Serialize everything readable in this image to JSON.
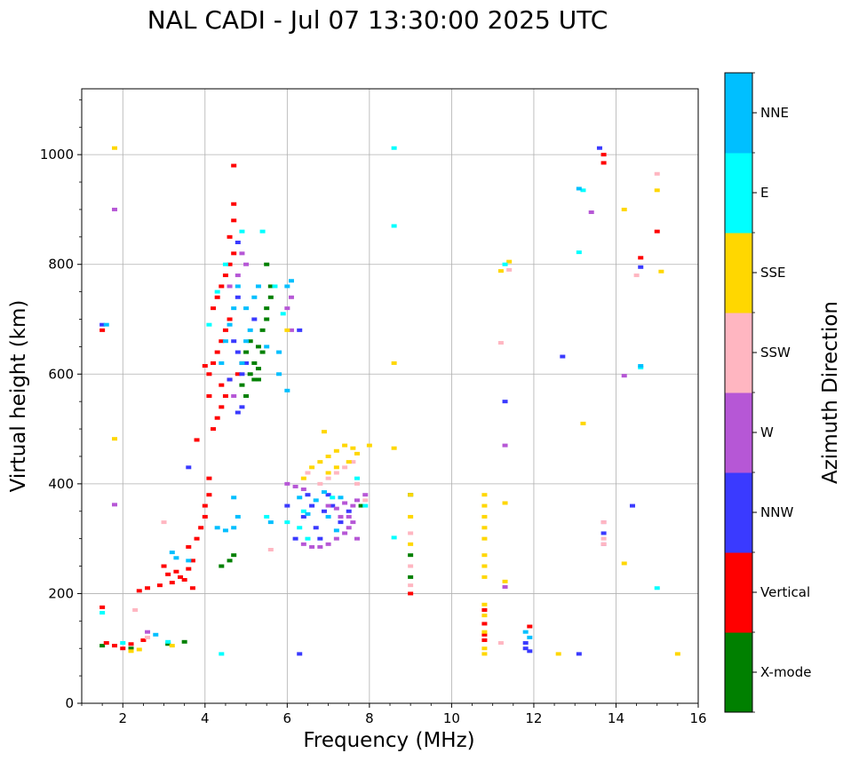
{
  "chart_data": {
    "type": "scatter",
    "title": "NAL CADI - Jul 07 13:30:00 2025 UTC",
    "xlabel": "Frequency (MHz)",
    "ylabel": "Virtual height (km)",
    "xlim": [
      1,
      16
    ],
    "ylim": [
      0,
      1120
    ],
    "xticks": [
      2,
      4,
      6,
      8,
      10,
      12,
      14,
      16
    ],
    "yticks": [
      0,
      200,
      400,
      600,
      800,
      1000
    ],
    "grid": true,
    "colorbar": {
      "label": "Azimuth Direction",
      "categories": [
        {
          "name": "X-mode",
          "color": "#008000"
        },
        {
          "name": "Vertical",
          "color": "#ff0000"
        },
        {
          "name": "NNW",
          "color": "#3a3aff"
        },
        {
          "name": "W",
          "color": "#b657d6"
        },
        {
          "name": "SSW",
          "color": "#ffb6c1"
        },
        {
          "name": "SSE",
          "color": "#ffd700"
        },
        {
          "name": "E",
          "color": "#00ffff"
        },
        {
          "name": "NNE",
          "color": "#00bfff"
        }
      ]
    },
    "series": [
      {
        "name": "X-mode",
        "points": [
          [
            1.5,
            105
          ],
          [
            2.2,
            100
          ],
          [
            3.1,
            108
          ],
          [
            3.5,
            112
          ],
          [
            4.4,
            250
          ],
          [
            4.7,
            270
          ],
          [
            4.6,
            260
          ],
          [
            5.0,
            560
          ],
          [
            5.1,
            600
          ],
          [
            5.2,
            620
          ],
          [
            5.3,
            650
          ],
          [
            5.4,
            680
          ],
          [
            5.5,
            720
          ],
          [
            5.6,
            760
          ],
          [
            5.2,
            590
          ],
          [
            5.3,
            610
          ],
          [
            5.4,
            640
          ],
          [
            5.5,
            700
          ],
          [
            5.5,
            800
          ],
          [
            4.9,
            580
          ],
          [
            5.0,
            640
          ],
          [
            5.1,
            660
          ],
          [
            5.6,
            740
          ],
          [
            7.8,
            360
          ],
          [
            9.0,
            380
          ],
          [
            9.0,
            270
          ],
          [
            9.0,
            230
          ],
          [
            5.3,
            590
          ]
        ]
      },
      {
        "name": "Vertical",
        "points": [
          [
            1.5,
            680
          ],
          [
            1.5,
            175
          ],
          [
            1.6,
            110
          ],
          [
            1.8,
            105
          ],
          [
            2.0,
            100
          ],
          [
            2.2,
            108
          ],
          [
            2.5,
            115
          ],
          [
            2.4,
            205
          ],
          [
            2.6,
            210
          ],
          [
            2.9,
            215
          ],
          [
            3.0,
            250
          ],
          [
            3.1,
            235
          ],
          [
            3.2,
            220
          ],
          [
            3.3,
            240
          ],
          [
            3.4,
            230
          ],
          [
            3.5,
            225
          ],
          [
            3.6,
            245
          ],
          [
            3.7,
            210
          ],
          [
            3.7,
            260
          ],
          [
            3.6,
            285
          ],
          [
            3.8,
            300
          ],
          [
            3.9,
            320
          ],
          [
            4.0,
            340
          ],
          [
            4.0,
            360
          ],
          [
            4.1,
            380
          ],
          [
            4.1,
            410
          ],
          [
            3.8,
            480
          ],
          [
            4.2,
            500
          ],
          [
            4.3,
            520
          ],
          [
            4.4,
            540
          ],
          [
            4.5,
            560
          ],
          [
            4.1,
            600
          ],
          [
            4.2,
            620
          ],
          [
            4.3,
            640
          ],
          [
            4.4,
            660
          ],
          [
            4.5,
            680
          ],
          [
            4.6,
            700
          ],
          [
            4.2,
            720
          ],
          [
            4.3,
            740
          ],
          [
            4.4,
            760
          ],
          [
            4.5,
            780
          ],
          [
            4.6,
            800
          ],
          [
            4.7,
            820
          ],
          [
            4.6,
            850
          ],
          [
            4.7,
            880
          ],
          [
            4.7,
            910
          ],
          [
            4.7,
            980
          ],
          [
            4.8,
            600
          ],
          [
            4.9,
            620
          ],
          [
            4.4,
            580
          ],
          [
            4.6,
            590
          ],
          [
            9.0,
            200
          ],
          [
            10.8,
            170
          ],
          [
            10.8,
            145
          ],
          [
            10.8,
            125
          ],
          [
            10.8,
            115
          ],
          [
            11.9,
            140
          ],
          [
            13.7,
            1000
          ],
          [
            13.7,
            985
          ],
          [
            14.6,
            812
          ],
          [
            15.0,
            860
          ],
          [
            4.1,
            560
          ],
          [
            4.0,
            615
          ]
        ]
      },
      {
        "name": "NNW",
        "points": [
          [
            1.5,
            690
          ],
          [
            3.6,
            430
          ],
          [
            4.8,
            530
          ],
          [
            4.9,
            540
          ],
          [
            4.6,
            590
          ],
          [
            4.9,
            600
          ],
          [
            5.0,
            620
          ],
          [
            4.8,
            640
          ],
          [
            4.7,
            660
          ],
          [
            5.2,
            700
          ],
          [
            4.8,
            740
          ],
          [
            4.8,
            840
          ],
          [
            6.3,
            90
          ],
          [
            6.3,
            680
          ],
          [
            6.4,
            340
          ],
          [
            6.6,
            360
          ],
          [
            6.7,
            320
          ],
          [
            6.8,
            300
          ],
          [
            6.9,
            350
          ],
          [
            7.0,
            380
          ],
          [
            7.1,
            360
          ],
          [
            7.3,
            330
          ],
          [
            7.5,
            350
          ],
          [
            6.0,
            360
          ],
          [
            6.2,
            300
          ],
          [
            11.3,
            550
          ],
          [
            11.8,
            110
          ],
          [
            11.8,
            100
          ],
          [
            11.9,
            95
          ],
          [
            12.7,
            632
          ],
          [
            13.1,
            90
          ],
          [
            13.6,
            1012
          ],
          [
            13.7,
            310
          ],
          [
            14.4,
            360
          ],
          [
            14.6,
            795
          ],
          [
            6.5,
            380
          ]
        ]
      },
      {
        "name": "W",
        "points": [
          [
            1.8,
            362
          ],
          [
            1.8,
            900
          ],
          [
            2.6,
            130
          ],
          [
            4.7,
            560
          ],
          [
            4.6,
            760
          ],
          [
            4.8,
            780
          ],
          [
            4.9,
            820
          ],
          [
            5.0,
            800
          ],
          [
            6.0,
            720
          ],
          [
            6.1,
            680
          ],
          [
            6.1,
            740
          ],
          [
            6.0,
            400
          ],
          [
            6.2,
            395
          ],
          [
            6.4,
            390
          ],
          [
            6.4,
            290
          ],
          [
            6.6,
            285
          ],
          [
            6.8,
            285
          ],
          [
            7.0,
            290
          ],
          [
            7.2,
            300
          ],
          [
            7.4,
            310
          ],
          [
            7.5,
            320
          ],
          [
            7.5,
            340
          ],
          [
            7.6,
            360
          ],
          [
            7.7,
            370
          ],
          [
            7.0,
            360
          ],
          [
            7.2,
            355
          ],
          [
            7.4,
            365
          ],
          [
            7.3,
            340
          ],
          [
            7.6,
            330
          ],
          [
            7.7,
            300
          ],
          [
            11.3,
            470
          ],
          [
            11.3,
            212
          ],
          [
            13.4,
            895
          ],
          [
            13.7,
            330
          ],
          [
            13.7,
            290
          ],
          [
            14.2,
            597
          ],
          [
            7.9,
            380
          ]
        ]
      },
      {
        "name": "SSW",
        "points": [
          [
            2.3,
            170
          ],
          [
            2.6,
            120
          ],
          [
            3.0,
            330
          ],
          [
            5.6,
            280
          ],
          [
            6.5,
            420
          ],
          [
            6.8,
            400
          ],
          [
            7.0,
            410
          ],
          [
            7.2,
            420
          ],
          [
            7.4,
            430
          ],
          [
            7.6,
            440
          ],
          [
            7.7,
            400
          ],
          [
            7.9,
            370
          ],
          [
            9.0,
            310
          ],
          [
            9.0,
            250
          ],
          [
            9.0,
            215
          ],
          [
            11.2,
            657
          ],
          [
            11.2,
            110
          ],
          [
            11.4,
            790
          ],
          [
            13.7,
            330
          ],
          [
            13.7,
            300
          ],
          [
            13.7,
            290
          ],
          [
            14.5,
            780
          ],
          [
            15.0,
            965
          ]
        ]
      },
      {
        "name": "SSE",
        "points": [
          [
            1.8,
            1012
          ],
          [
            1.8,
            482
          ],
          [
            2.2,
            95
          ],
          [
            2.4,
            98
          ],
          [
            3.2,
            105
          ],
          [
            6.0,
            680
          ],
          [
            6.4,
            410
          ],
          [
            6.6,
            430
          ],
          [
            6.8,
            440
          ],
          [
            7.0,
            450
          ],
          [
            7.2,
            460
          ],
          [
            7.4,
            470
          ],
          [
            7.6,
            465
          ],
          [
            7.7,
            455
          ],
          [
            6.9,
            495
          ],
          [
            7.0,
            420
          ],
          [
            7.2,
            430
          ],
          [
            7.5,
            440
          ],
          [
            8.0,
            470
          ],
          [
            8.6,
            620
          ],
          [
            8.6,
            465
          ],
          [
            9.0,
            380
          ],
          [
            9.0,
            340
          ],
          [
            9.0,
            290
          ],
          [
            10.8,
            380
          ],
          [
            10.8,
            360
          ],
          [
            10.8,
            340
          ],
          [
            10.8,
            320
          ],
          [
            10.8,
            300
          ],
          [
            10.8,
            270
          ],
          [
            10.8,
            250
          ],
          [
            10.8,
            230
          ],
          [
            10.8,
            180
          ],
          [
            10.8,
            160
          ],
          [
            10.8,
            130
          ],
          [
            10.8,
            100
          ],
          [
            10.8,
            90
          ],
          [
            11.3,
            365
          ],
          [
            11.3,
            222
          ],
          [
            11.2,
            788
          ],
          [
            11.4,
            805
          ],
          [
            12.6,
            90
          ],
          [
            13.2,
            510
          ],
          [
            14.2,
            900
          ],
          [
            14.2,
            255
          ],
          [
            15.0,
            935
          ],
          [
            15.5,
            90
          ],
          [
            15.1,
            787
          ]
        ]
      },
      {
        "name": "E",
        "points": [
          [
            1.5,
            165
          ],
          [
            2.0,
            110
          ],
          [
            3.1,
            112
          ],
          [
            4.1,
            690
          ],
          [
            4.3,
            750
          ],
          [
            4.5,
            800
          ],
          [
            4.9,
            860
          ],
          [
            5.4,
            860
          ],
          [
            5.5,
            340
          ],
          [
            5.7,
            760
          ],
          [
            5.9,
            710
          ],
          [
            6.0,
            330
          ],
          [
            6.3,
            320
          ],
          [
            6.4,
            350
          ],
          [
            6.5,
            300
          ],
          [
            7.1,
            375
          ],
          [
            7.9,
            360
          ],
          [
            8.6,
            1012
          ],
          [
            8.6,
            870
          ],
          [
            8.6,
            302
          ],
          [
            11.3,
            800
          ],
          [
            13.1,
            822
          ],
          [
            13.2,
            935
          ],
          [
            14.6,
            612
          ],
          [
            15.0,
            210
          ],
          [
            4.4,
            90
          ],
          [
            7.7,
            410
          ]
        ]
      },
      {
        "name": "NNE",
        "points": [
          [
            1.6,
            690
          ],
          [
            2.8,
            125
          ],
          [
            3.2,
            275
          ],
          [
            3.3,
            265
          ],
          [
            3.6,
            260
          ],
          [
            4.3,
            320
          ],
          [
            4.5,
            315
          ],
          [
            4.7,
            320
          ],
          [
            4.7,
            375
          ],
          [
            4.8,
            340
          ],
          [
            4.4,
            620
          ],
          [
            4.5,
            660
          ],
          [
            4.6,
            690
          ],
          [
            4.7,
            720
          ],
          [
            4.8,
            760
          ],
          [
            5.0,
            720
          ],
          [
            5.1,
            680
          ],
          [
            5.2,
            740
          ],
          [
            5.3,
            760
          ],
          [
            5.5,
            650
          ],
          [
            5.8,
            600
          ],
          [
            6.0,
            570
          ],
          [
            6.0,
            760
          ],
          [
            6.1,
            770
          ],
          [
            6.3,
            375
          ],
          [
            6.5,
            345
          ],
          [
            6.7,
            370
          ],
          [
            6.9,
            385
          ],
          [
            7.0,
            340
          ],
          [
            7.2,
            315
          ],
          [
            7.3,
            375
          ],
          [
            4.9,
            620
          ],
          [
            5.0,
            660
          ],
          [
            5.8,
            640
          ],
          [
            11.8,
            130
          ],
          [
            11.9,
            120
          ],
          [
            13.1,
            938
          ],
          [
            14.6,
            615
          ],
          [
            5.6,
            330
          ]
        ]
      }
    ]
  }
}
